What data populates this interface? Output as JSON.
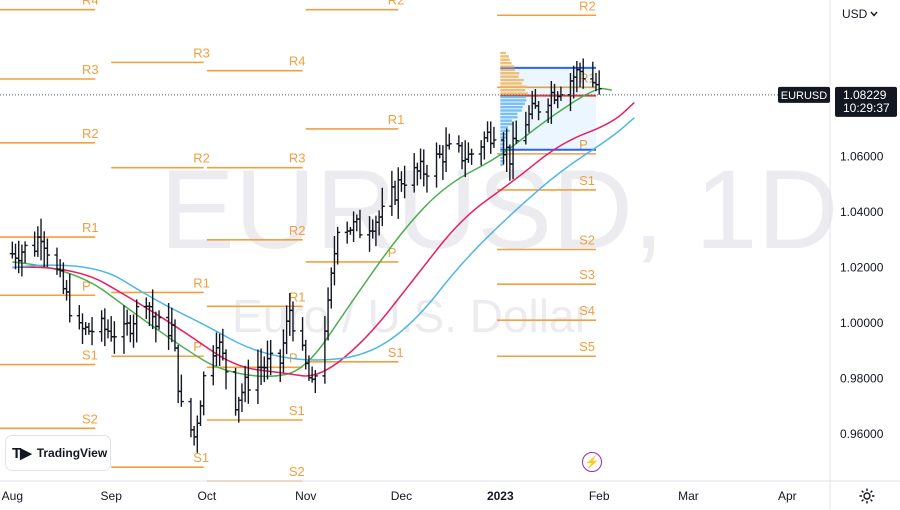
{
  "header": {
    "currency": "USD"
  },
  "watermark": {
    "symbol": "EURUSD, 1D",
    "description": "Euro / U.S. Dollar"
  },
  "brand": {
    "name": "TradingView"
  },
  "last_price": {
    "symbol": "EURUSD",
    "price": "1.08229",
    "countdown": "10:29:37"
  },
  "colors": {
    "pivot": "#f0a040",
    "ema_fast": "#4caf50",
    "ema_mid": "#e91e63",
    "ema_slow": "#4fb6e6",
    "bars": "#131722"
  },
  "chart_data": {
    "type": "ohlc",
    "symbol": "EURUSD",
    "interval": "1D",
    "y_axis": {
      "min": 0.943,
      "max": 1.1165,
      "ticks": [
        "1.06000",
        "1.04000",
        "1.02000",
        "1.00000",
        "0.98000",
        "0.96000"
      ],
      "side": "right"
    },
    "x_axis": {
      "labels": [
        "Aug",
        "Sep",
        "Oct",
        "Nov",
        "Dec",
        "2023",
        "Feb",
        "Mar",
        "Apr"
      ]
    },
    "ohlc_anchors": [
      [
        "2022-08-01",
        1.025
      ],
      [
        "2022-08-08",
        1.028
      ],
      [
        "2022-08-10",
        1.033
      ],
      [
        "2022-08-15",
        1.018
      ],
      [
        "2022-08-22",
        0.997
      ],
      [
        "2022-08-29",
        0.998
      ],
      [
        "2022-09-05",
        0.996
      ],
      [
        "2022-09-12",
        1.01
      ],
      [
        "2022-09-15",
        0.999
      ],
      [
        "2022-09-20",
        0.998
      ],
      [
        "2022-09-23",
        0.969
      ],
      [
        "2022-09-27",
        0.959
      ],
      [
        "2022-09-30",
        0.98
      ],
      [
        "2022-10-04",
        0.995
      ],
      [
        "2022-10-10",
        0.972
      ],
      [
        "2022-10-17",
        0.984
      ],
      [
        "2022-10-24",
        0.986
      ],
      [
        "2022-10-27",
        1.005
      ],
      [
        "2022-10-31",
        0.988
      ],
      [
        "2022-11-03",
        0.976
      ],
      [
        "2022-11-08",
        1.005
      ],
      [
        "2022-11-11",
        1.036
      ],
      [
        "2022-11-18",
        1.034
      ],
      [
        "2022-11-25",
        1.039
      ],
      [
        "2022-12-01",
        1.052
      ],
      [
        "2022-12-08",
        1.055
      ],
      [
        "2022-12-15",
        1.062
      ],
      [
        "2022-12-22",
        1.06
      ],
      [
        "2022-12-30",
        1.07
      ],
      [
        "2023-01-04",
        1.06
      ],
      [
        "2023-01-09",
        1.073
      ],
      [
        "2023-01-16",
        1.082
      ],
      [
        "2023-01-23",
        1.088
      ],
      [
        "2023-01-26",
        1.091
      ],
      [
        "2023-01-31",
        1.086
      ],
      [
        "2023-02-01",
        1.0823
      ]
    ],
    "series": [
      {
        "name": "",
        "type": "ema",
        "color": "#4caf50",
        "points": [
          [
            "2022-08-01",
            1.022
          ],
          [
            "2022-08-20",
            1.02
          ],
          [
            "2022-09-10",
            1.002
          ],
          [
            "2022-09-25",
            0.99
          ],
          [
            "2022-10-05",
            0.983
          ],
          [
            "2022-10-20",
            0.98
          ],
          [
            "2022-11-01",
            0.983
          ],
          [
            "2022-11-15",
            1.007
          ],
          [
            "2022-12-01",
            1.033
          ],
          [
            "2022-12-15",
            1.05
          ],
          [
            "2023-01-01",
            1.06
          ],
          [
            "2023-01-15",
            1.073
          ],
          [
            "2023-01-31",
            1.085
          ],
          [
            "2023-02-05",
            1.084
          ]
        ]
      },
      {
        "name": "",
        "type": "ema",
        "color": "#e91e63",
        "points": [
          [
            "2022-08-01",
            1.02
          ],
          [
            "2022-08-20",
            1.021
          ],
          [
            "2022-09-10",
            1.007
          ],
          [
            "2022-09-25",
            0.996
          ],
          [
            "2022-10-10",
            0.984
          ],
          [
            "2022-10-25",
            0.982
          ],
          [
            "2022-11-05",
            0.98
          ],
          [
            "2022-11-20",
            0.994
          ],
          [
            "2022-12-05",
            1.016
          ],
          [
            "2022-12-20",
            1.038
          ],
          [
            "2023-01-05",
            1.051
          ],
          [
            "2023-01-20",
            1.065
          ],
          [
            "2023-02-05",
            1.072
          ],
          [
            "2023-02-12",
            1.0795
          ]
        ]
      },
      {
        "name": "",
        "type": "ema",
        "color": "#4fb6e6",
        "points": [
          [
            "2022-08-01",
            1.02
          ],
          [
            "2022-08-25",
            1.023
          ],
          [
            "2022-09-15",
            1.008
          ],
          [
            "2022-10-01",
            0.999
          ],
          [
            "2022-10-15",
            0.99
          ],
          [
            "2022-11-01",
            0.986
          ],
          [
            "2022-11-20",
            0.988
          ],
          [
            "2022-12-05",
            1.0
          ],
          [
            "2022-12-20",
            1.022
          ],
          [
            "2023-01-05",
            1.04
          ],
          [
            "2023-01-20",
            1.055
          ],
          [
            "2023-02-05",
            1.067
          ],
          [
            "2023-02-12",
            1.074
          ]
        ]
      }
    ],
    "pivot_periods": [
      {
        "from": "2022-07-25",
        "to": "2022-08-27",
        "levels": [
          {
            "label": "R4",
            "value": 1.113
          },
          {
            "label": "R3",
            "value": 1.088
          },
          {
            "label": "R2",
            "value": 1.065
          },
          {
            "label": "R1",
            "value": 1.031
          },
          {
            "label": "P",
            "value": 1.01
          },
          {
            "label": "S1",
            "value": 0.985
          },
          {
            "label": "S2",
            "value": 0.962
          }
        ]
      },
      {
        "from": "2022-09-01",
        "to": "2022-09-30",
        "levels": [
          {
            "label": "R3",
            "value": 1.094
          },
          {
            "label": "R2",
            "value": 1.056
          },
          {
            "label": "R1",
            "value": 1.011
          },
          {
            "label": "P",
            "value": 0.988
          },
          {
            "label": "S1",
            "value": 0.948
          }
        ]
      },
      {
        "from": "2022-10-01",
        "to": "2022-10-31",
        "levels": [
          {
            "label": "R4",
            "value": 1.091
          },
          {
            "label": "R3",
            "value": 1.056
          },
          {
            "label": "R2",
            "value": 1.03
          },
          {
            "label": "R1",
            "value": 1.006
          },
          {
            "label": "P",
            "value": 0.984
          },
          {
            "label": "S1",
            "value": 0.965
          },
          {
            "label": "S2",
            "value": 0.943
          }
        ]
      },
      {
        "from": "2022-11-01",
        "to": "2022-11-30",
        "levels": [
          {
            "label": "R2",
            "value": 1.113
          },
          {
            "label": "R1",
            "value": 1.07
          },
          {
            "label": "P",
            "value": 1.022
          },
          {
            "label": "S1",
            "value": 0.986
          }
        ]
      },
      {
        "from": "2022-12-31",
        "to": "2023-01-31",
        "levels": [
          {
            "label": "R2",
            "value": 1.111
          },
          {
            "label": "R1",
            "value": 1.085
          },
          {
            "label": "P",
            "value": 1.061
          },
          {
            "label": "S1",
            "value": 1.048
          },
          {
            "label": "S2",
            "value": 1.0265
          },
          {
            "label": "S3",
            "value": 1.014
          },
          {
            "label": "S4",
            "value": 1.001
          },
          {
            "label": "S5",
            "value": 0.988
          }
        ]
      }
    ],
    "volume_profile": {
      "from": "2023-01-01",
      "to": "2023-01-31",
      "value_area_high": 1.092,
      "value_area_low": 1.0625,
      "poc": 1.082
    }
  }
}
